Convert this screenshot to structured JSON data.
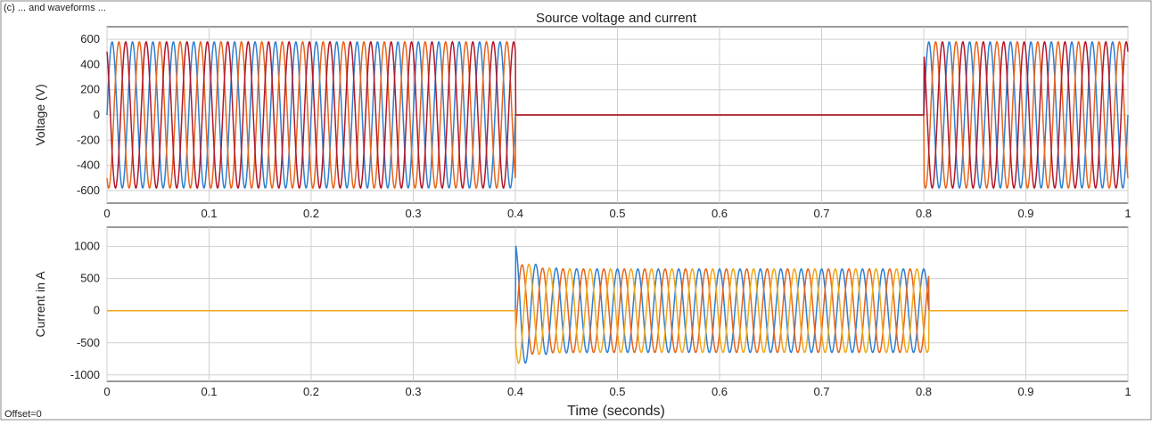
{
  "figure": {
    "caption_fragment": "(c) ... and waveforms ...",
    "title": "Source voltage and current",
    "xlabel": "Time (seconds)",
    "offset_label": "Offset=0"
  },
  "colors": {
    "phase_a": "#2f7fd0",
    "phase_b": "#e8641b",
    "phase_c": "#b2182b",
    "phase_c_current": "#f0a818",
    "grid": "#cfcfcf",
    "axis": "#333333"
  },
  "chart_data": [
    {
      "type": "line",
      "name": "voltage",
      "title": "Source voltage and current",
      "xlabel": "",
      "ylabel": "Voltage (V)",
      "xlim": [
        0,
        1
      ],
      "ylim": [
        -700,
        700
      ],
      "xticks": [
        0,
        0.1,
        0.2,
        0.3,
        0.4,
        0.5,
        0.6,
        0.7,
        0.8,
        0.9,
        1
      ],
      "xtick_labels": [
        "0",
        "0.1",
        "0.2",
        "0.3",
        "0.4",
        "0.5",
        "0.6",
        "0.7",
        "0.8",
        "0.9",
        "1"
      ],
      "yticks": [
        -600,
        -400,
        -200,
        0,
        200,
        400,
        600
      ],
      "ytick_labels": [
        "-600",
        "-400",
        "-200",
        "0",
        "200",
        "400",
        "600"
      ],
      "grid": true,
      "frequency_hz": 50,
      "series": [
        {
          "phase_deg": 0,
          "color_key": "phase_a",
          "segments": [
            {
              "t0": 0,
              "t1": 0.4,
              "amplitude": 580
            },
            {
              "t0": 0.4,
              "t1": 0.8,
              "amplitude": 0
            },
            {
              "t0": 0.8,
              "t1": 1.0,
              "amplitude": 580
            }
          ]
        },
        {
          "phase_deg": -120,
          "color_key": "phase_b",
          "segments": [
            {
              "t0": 0,
              "t1": 0.4,
              "amplitude": 580
            },
            {
              "t0": 0.4,
              "t1": 0.8,
              "amplitude": 0
            },
            {
              "t0": 0.8,
              "t1": 1.0,
              "amplitude": 580
            }
          ]
        },
        {
          "phase_deg": 120,
          "color_key": "phase_c",
          "segments": [
            {
              "t0": 0,
              "t1": 0.4,
              "amplitude": 580
            },
            {
              "t0": 0.4,
              "t1": 0.8,
              "amplitude": 0
            },
            {
              "t0": 0.8,
              "t1": 1.0,
              "amplitude": 580
            }
          ]
        }
      ]
    },
    {
      "type": "line",
      "name": "current",
      "title": "",
      "xlabel": "Time (seconds)",
      "ylabel": "Current in A",
      "xlim": [
        0,
        1
      ],
      "ylim": [
        -1100,
        1300
      ],
      "xticks": [
        0,
        0.1,
        0.2,
        0.3,
        0.4,
        0.5,
        0.6,
        0.7,
        0.8,
        0.9,
        1
      ],
      "xtick_labels": [
        "0",
        "0.1",
        "0.2",
        "0.3",
        "0.4",
        "0.5",
        "0.6",
        "0.7",
        "0.8",
        "0.9",
        "1"
      ],
      "yticks": [
        -1000,
        -500,
        0,
        500,
        1000
      ],
      "ytick_labels": [
        "-1000",
        "-500",
        "0",
        "500",
        "1000"
      ],
      "grid": true,
      "frequency_hz": 50,
      "series": [
        {
          "phase_deg": 90,
          "color_key": "phase_a",
          "segments": [
            {
              "t0": 0,
              "t1": 0.4,
              "amplitude": 0
            },
            {
              "t0": 0.4,
              "t1": 0.805,
              "amplitude": 650,
              "transient_peak": 1030
            },
            {
              "t0": 0.805,
              "t1": 1.0,
              "amplitude": 0
            }
          ]
        },
        {
          "phase_deg": -30,
          "color_key": "phase_b",
          "segments": [
            {
              "t0": 0,
              "t1": 0.4,
              "amplitude": 0
            },
            {
              "t0": 0.4,
              "t1": 0.805,
              "amplitude": 650,
              "transient_peak": 760
            },
            {
              "t0": 0.805,
              "t1": 1.0,
              "amplitude": 0
            }
          ]
        },
        {
          "phase_deg": 210,
          "color_key": "phase_c_current",
          "segments": [
            {
              "t0": 0,
              "t1": 0.4,
              "amplitude": 0
            },
            {
              "t0": 0.4,
              "t1": 0.805,
              "amplitude": 650,
              "transient_peak": 870
            },
            {
              "t0": 0.805,
              "t1": 1.0,
              "amplitude": 0
            }
          ]
        }
      ]
    }
  ]
}
